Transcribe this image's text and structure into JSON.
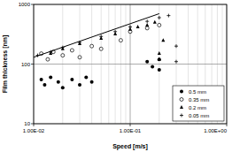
{
  "chart_data": {
    "type": "scatter",
    "x_label": "Speed [m/s]",
    "y_label": "Film thickness [nm]",
    "log": true,
    "grid": true,
    "legend": "lower right",
    "xlim": [
      0.01,
      1
    ],
    "xticks": [
      {
        "value": 0.01,
        "label": "1.00E-02"
      },
      {
        "value": 0.1,
        "label": "1.00E-01"
      },
      {
        "value": 1,
        "label": "1.00E+00"
      }
    ],
    "ylim": [
      10,
      1000
    ],
    "yticks": [
      10,
      100,
      1000
    ],
    "series": [
      {
        "name": "0.5 mm",
        "color": "#000000",
        "marker": "filled-circle",
        "x": [
          0.012,
          0.013,
          0.015,
          0.018,
          0.02,
          0.025,
          0.03,
          0.035,
          0.04,
          0.15,
          0.17,
          0.2,
          0.2
        ],
        "values": [
          55,
          45,
          60,
          50,
          40,
          55,
          45,
          60,
          50,
          110,
          90,
          120,
          80
        ]
      },
      {
        "name": "0.35 mm",
        "color": "#000000",
        "marker": "open-circle",
        "x": [
          0.012,
          0.014,
          0.016,
          0.02,
          0.025,
          0.03,
          0.04,
          0.05,
          0.08,
          0.1,
          0.15,
          0.2
        ],
        "values": [
          150,
          120,
          160,
          140,
          170,
          130,
          200,
          180,
          250,
          350,
          400,
          450
        ]
      },
      {
        "name": "0.2 mm",
        "color": "#000000",
        "marker": "triangle",
        "x": [
          0.015,
          0.02,
          0.03,
          0.05,
          0.07,
          0.1,
          0.12,
          0.15,
          0.18,
          0.2,
          0.2,
          0.22
        ],
        "values": [
          150,
          180,
          220,
          270,
          320,
          380,
          420,
          450,
          500,
          150,
          120,
          250
        ]
      },
      {
        "name": "0.05 mm",
        "color": "#000000",
        "marker": "plus",
        "x": [
          0.011,
          0.015,
          0.02,
          0.03,
          0.05,
          0.07,
          0.1,
          0.15,
          0.2,
          0.25,
          0.3,
          0.3
        ],
        "values": [
          140,
          160,
          190,
          230,
          290,
          350,
          420,
          520,
          600,
          650,
          200,
          110
        ]
      },
      {
        "type": "line",
        "color": "#000000",
        "line_style": "solid",
        "x": [
          0.01,
          0.2
        ],
        "values": [
          130,
          700
        ]
      }
    ]
  }
}
